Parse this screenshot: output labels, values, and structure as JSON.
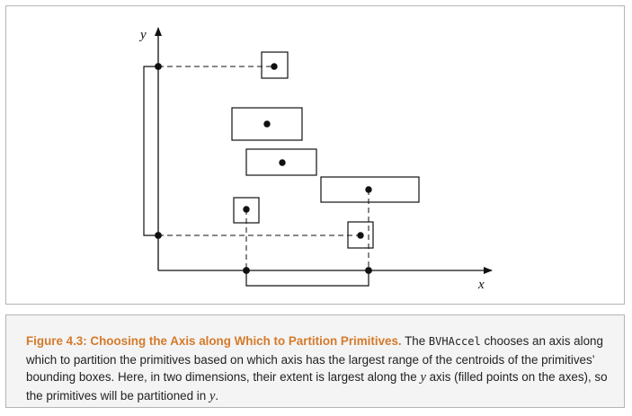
{
  "figure": {
    "axis_x_label": "x",
    "axis_y_label": "y",
    "x_extent": {
      "min_point": "left-box-centroid-x",
      "max_point": "bottom-right-box-centroid-x"
    },
    "y_extent": {
      "min_point": "bottom-right-box-centroid-y",
      "max_point": "top-box-centroid-y"
    },
    "bounding_boxes": [
      {
        "name": "top",
        "centroid_filled": true
      },
      {
        "name": "upper-middle",
        "centroid_filled": true
      },
      {
        "name": "middle",
        "centroid_filled": true
      },
      {
        "name": "right-wide",
        "centroid_filled": true
      },
      {
        "name": "small-left",
        "centroid_filled": true
      },
      {
        "name": "small-bottom-right",
        "centroid_filled": true
      }
    ],
    "stroke_color": "#111111",
    "frame_color": "#b4b4b4"
  },
  "caption": {
    "title": "Figure 4.3: Choosing the Axis along Which to Partition Primitives.",
    "part1": " The ",
    "code": "BVHAccel",
    "part2": " chooses an axis along which to partition the primitives based on which axis has the largest range of the centroids of the primitives’ bounding boxes. Here, in two dimensions, their extent is largest along the ",
    "var1": "y",
    "part3": " axis (filled points on the axes), so the primitives will be partitioned in ",
    "var2": "y",
    "part4": ".",
    "title_color": "#d57a2a",
    "background_color": "#f4f4f4"
  }
}
